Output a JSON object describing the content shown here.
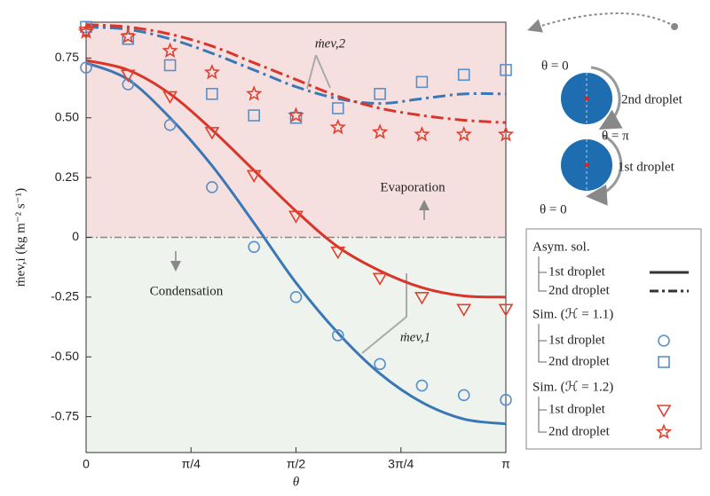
{
  "chart_data": {
    "type": "line",
    "xlabel": "θ",
    "ylabel": "ṁev,i (kg m⁻² s⁻¹)",
    "xlim": [
      0,
      3.141593
    ],
    "ylim": [
      -0.9,
      0.9
    ],
    "xticks": [
      0,
      {
        "value": 0.785398,
        "label": "π/4"
      },
      {
        "value": 1.570796,
        "label": "π/2"
      },
      {
        "value": 2.356194,
        "label": "3π/4"
      },
      {
        "value": 3.141593,
        "label": "π"
      }
    ],
    "yticks": [
      {
        "value": -0.75,
        "label": "-0.75"
      },
      {
        "value": -0.5,
        "label": "-0.50"
      },
      {
        "value": -0.25,
        "label": "-0.25"
      },
      0,
      {
        "value": 0.25,
        "label": "0.25"
      },
      {
        "value": 0.5,
        "label": "0.50"
      },
      {
        "value": 0.75,
        "label": "0.75"
      }
    ],
    "x": [
      0,
      0.314159,
      0.628319,
      0.942478,
      1.256637,
      1.570796,
      1.884956,
      2.199115,
      2.513274,
      2.827433,
      3.141593
    ],
    "series": [
      {
        "color": "#3a78b5",
        "style": "solid",
        "values": [
          0.73,
          0.66,
          0.5,
          0.3,
          0.06,
          -0.19,
          -0.4,
          -0.57,
          -0.69,
          -0.76,
          -0.78
        ]
      },
      {
        "color": "#d9352a",
        "style": "solid",
        "values": [
          0.74,
          0.7,
          0.6,
          0.45,
          0.28,
          0.11,
          -0.04,
          -0.14,
          -0.21,
          -0.245,
          -0.25
        ]
      },
      {
        "color": "#3a78b5",
        "style": "dashdot",
        "values": [
          0.88,
          0.87,
          0.83,
          0.77,
          0.7,
          0.63,
          0.58,
          0.56,
          0.58,
          0.6,
          0.6
        ]
      },
      {
        "color": "#d9352a",
        "style": "dashdot",
        "values": [
          0.89,
          0.88,
          0.85,
          0.8,
          0.73,
          0.66,
          0.59,
          0.54,
          0.51,
          0.49,
          0.48
        ]
      },
      {
        "color": "#5b8fc7",
        "marker": "circle",
        "values": [
          0.71,
          0.64,
          0.47,
          0.21,
          -0.04,
          -0.25,
          -0.41,
          -0.53,
          -0.62,
          -0.66,
          -0.68
        ]
      },
      {
        "color": "#5b8fc7",
        "marker": "square",
        "values": [
          0.88,
          0.83,
          0.72,
          0.6,
          0.51,
          0.5,
          0.54,
          0.6,
          0.65,
          0.68,
          0.7
        ]
      },
      {
        "color": "#e0402f",
        "marker": "triangle",
        "values": [
          0.86,
          0.68,
          0.59,
          0.44,
          0.26,
          0.09,
          -0.06,
          -0.17,
          -0.25,
          -0.3,
          -0.3
        ]
      },
      {
        "color": "#e0402f",
        "marker": "star",
        "values": [
          0.86,
          0.84,
          0.78,
          0.69,
          0.6,
          0.51,
          0.46,
          0.44,
          0.43,
          0.43,
          0.43
        ]
      }
    ],
    "annotations": [
      "ṁev,2",
      "ṁev,1",
      "Evaporation",
      "Condensation"
    ],
    "legend": [
      {
        "title": "Asym. sol.",
        "entries": [
          "1st droplet",
          "2nd droplet"
        ]
      },
      {
        "title": "Sim. (ℋ = 1.1)",
        "entries": [
          "1st droplet",
          "2nd droplet"
        ]
      },
      {
        "title": "Sim. (ℋ = 1.2)",
        "entries": [
          "1st droplet",
          "2nd droplet"
        ]
      }
    ]
  },
  "diagram": {
    "labels": [
      "θ = 0",
      "2nd droplet",
      "θ = π",
      "1st droplet",
      "θ = 0"
    ]
  }
}
